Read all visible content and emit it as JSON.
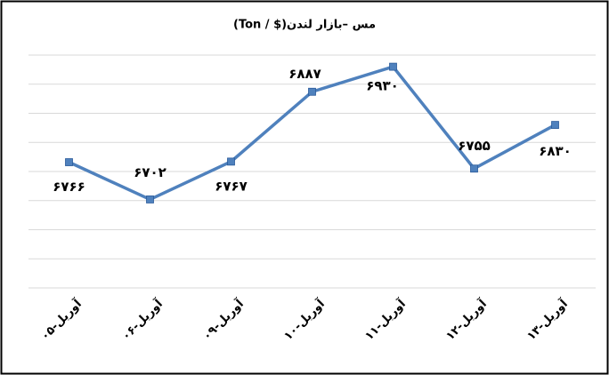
{
  "chart_data": {
    "type": "line",
    "title": "مس –بازار لندن($ / Ton)",
    "categories": [
      "۰۵-آوریل",
      "۰۶-آوریل",
      "۰۹-آوریل",
      "۱۰-آوریل",
      "۱۱-آوریل",
      "۱۲-آوریل",
      "۱۳-آوریل"
    ],
    "series": [
      {
        "color": "#4f81bd",
        "values": [
          6766,
          6702,
          6767,
          6887,
          6930,
          6755,
          6830
        ],
        "value_labels": [
          "۶۷۶۶",
          "۶۷۰۲",
          "۶۷۶۷",
          "۶۸۸۷",
          "۶۹۳۰",
          "۶۷۵۵",
          "۶۸۳۰"
        ]
      }
    ],
    "ylim": [
      6550,
      6950
    ],
    "yticks": [
      6550,
      6600,
      6650,
      6700,
      6750,
      6800,
      6850,
      6900,
      6950
    ],
    "grid": true
  }
}
